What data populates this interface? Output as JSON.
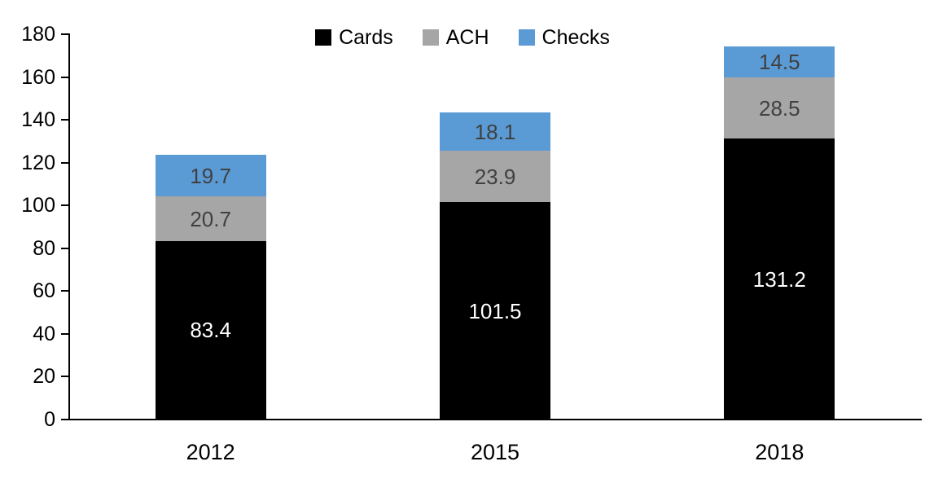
{
  "chart_data": {
    "type": "bar",
    "stacked": true,
    "title": "",
    "xlabel": "",
    "ylabel": "",
    "categories": [
      "2012",
      "2015",
      "2018"
    ],
    "series": [
      {
        "name": "Cards",
        "color": "#000000",
        "label_color": "#ffffff",
        "values": [
          83.4,
          101.5,
          131.2
        ]
      },
      {
        "name": "ACH",
        "color": "#A6A6A6",
        "label_color": "#404040",
        "values": [
          20.7,
          23.9,
          28.5
        ]
      },
      {
        "name": "Checks",
        "color": "#5B9BD5",
        "label_color": "#404040",
        "values": [
          19.7,
          18.1,
          14.5
        ]
      }
    ],
    "ylim": [
      0,
      180
    ],
    "yticks": [
      0,
      20,
      40,
      60,
      80,
      100,
      120,
      140,
      160,
      180
    ],
    "legend_position": "top",
    "grid": false,
    "axis_color": "#000000",
    "value_decimals": 1
  }
}
